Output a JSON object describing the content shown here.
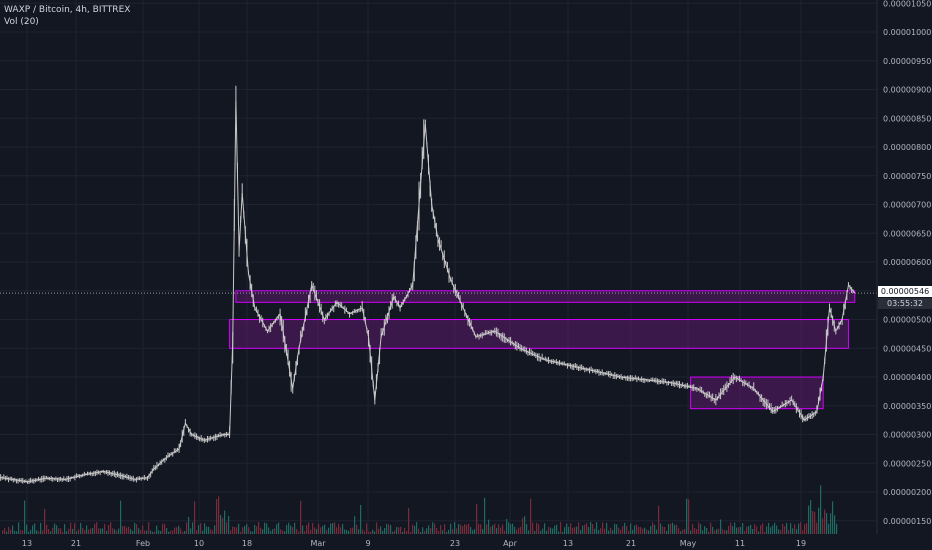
{
  "header": {
    "symbol": "WAXP / Bitcoin, 4h, BITTREX",
    "volume_label": "Vol (20)"
  },
  "price_tag": "0.00000546",
  "countdown": "03:55:32",
  "colors": {
    "background": "#131722",
    "grid": "#1f2330",
    "candle": "#c8c8c8",
    "zone_fill": "#5c1a6b",
    "zone_border": "#d400ff",
    "volume_up": "#1e6b63",
    "volume_down": "#7a2b3a",
    "axis_text": "#b2b5be",
    "price_line": "#9598a1"
  },
  "chart_data": {
    "type": "line",
    "title": "WAXP / Bitcoin, 4h, BITTREX",
    "timeframe": "4h",
    "xlabel": "",
    "ylabel": "",
    "y_scale": "linear",
    "ylim": [
      1.2e-06,
      1.05e-05
    ],
    "x_ticks": [
      "13",
      "21",
      "Feb",
      "10",
      "18",
      "Mar",
      "9",
      "23",
      "Apr",
      "13",
      "21",
      "May",
      "11",
      "19"
    ],
    "y_ticks": [
      "0.00000150",
      "0.00000200",
      "0.00000250",
      "0.00000300",
      "0.00000350",
      "0.00000400",
      "0.00000450",
      "0.00000500",
      "0.00000550",
      "0.00000600",
      "0.00000650",
      "0.00000700",
      "0.00000750",
      "0.00000800",
      "0.00000850",
      "0.00000900",
      "0.00000950",
      "0.00001000",
      "0.00001050"
    ],
    "last_price": 5.46e-06,
    "series": [
      {
        "values_label": "approximate close path (date index, price)",
        "points": [
          [
            "Jan 06",
            2.3e-06
          ],
          [
            "Jan 09",
            2.25e-06
          ],
          [
            "Jan 13",
            2.18e-06
          ],
          [
            "Jan 16",
            2.24e-06
          ],
          [
            "Jan 19",
            2.22e-06
          ],
          [
            "Jan 22",
            2.3e-06
          ],
          [
            "Jan 25",
            2.36e-06
          ],
          [
            "Jan 28",
            2.28e-06
          ],
          [
            "Jan 30",
            2.22e-06
          ],
          [
            "Feb 01",
            2.25e-06
          ],
          [
            "Feb 02",
            2.4e-06
          ],
          [
            "Feb 04",
            2.6e-06
          ],
          [
            "Feb 06",
            2.75e-06
          ],
          [
            "Feb 07",
            3.2e-06
          ],
          [
            "Feb 08",
            3e-06
          ],
          [
            "Feb 10",
            2.9e-06
          ],
          [
            "Feb 13",
            3e-06
          ],
          [
            "Feb 14",
            3e-06
          ],
          [
            "Feb 14 12h",
            4.6e-06
          ],
          [
            "Feb 15",
            8.8e-06
          ],
          [
            "Feb 15 12h",
            6.2e-06
          ],
          [
            "Feb 16",
            7.2e-06
          ],
          [
            "Feb 17",
            5.8e-06
          ],
          [
            "Feb 18",
            5.2e-06
          ],
          [
            "Feb 20",
            4.8e-06
          ],
          [
            "Feb 22",
            5.1e-06
          ],
          [
            "Feb 24",
            3.8e-06
          ],
          [
            "Feb 25",
            4.5e-06
          ],
          [
            "Feb 27",
            5.6e-06
          ],
          [
            "Mar 01",
            5e-06
          ],
          [
            "Mar 03",
            5.3e-06
          ],
          [
            "Mar 05",
            5.1e-06
          ],
          [
            "Mar 07",
            5.2e-06
          ],
          [
            "Mar 08",
            4.7e-06
          ],
          [
            "Mar 09",
            3.6e-06
          ],
          [
            "Mar 10",
            4.7e-06
          ],
          [
            "Mar 12",
            5.4e-06
          ],
          [
            "Mar 13",
            5.2e-06
          ],
          [
            "Mar 15",
            5.6e-06
          ],
          [
            "Mar 17",
            8.4e-06
          ],
          [
            "Mar 18",
            7e-06
          ],
          [
            "Mar 19",
            6.4e-06
          ],
          [
            "Mar 21",
            5.7e-06
          ],
          [
            "Mar 23",
            5.2e-06
          ],
          [
            "Mar 25",
            4.7e-06
          ],
          [
            "Mar 28",
            4.8e-06
          ],
          [
            "Apr 01",
            4.5e-06
          ],
          [
            "Apr 05",
            4.3e-06
          ],
          [
            "Apr 09",
            4.2e-06
          ],
          [
            "Apr 13",
            4.1e-06
          ],
          [
            "Apr 17",
            4e-06
          ],
          [
            "Apr 21",
            3.95e-06
          ],
          [
            "Apr 25",
            3.9e-06
          ],
          [
            "Apr 29",
            3.8e-06
          ],
          [
            "May 02",
            3.6e-06
          ],
          [
            "May 05",
            4e-06
          ],
          [
            "May 08",
            3.8e-06
          ],
          [
            "May 11",
            3.4e-06
          ],
          [
            "May 14",
            3.6e-06
          ],
          [
            "May 16",
            3.25e-06
          ],
          [
            "May 18",
            3.4e-06
          ],
          [
            "May 19",
            4e-06
          ],
          [
            "May 20",
            5.2e-06
          ],
          [
            "May 21",
            4.8e-06
          ],
          [
            "May 22",
            5e-06
          ],
          [
            "May 23",
            5.6e-06
          ],
          [
            "May 24",
            5.46e-06
          ]
        ]
      }
    ],
    "zones": [
      {
        "from": "Feb 15",
        "to": "May 24",
        "low": 5.3e-06,
        "high": 5.5e-06
      },
      {
        "from": "Feb 14",
        "to": "May 23",
        "low": 4.5e-06,
        "high": 5e-06
      },
      {
        "from": "Apr 28",
        "to": "May 19",
        "low": 3.45e-06,
        "high": 4e-06
      }
    ],
    "grid": true,
    "legend": "top-left"
  }
}
